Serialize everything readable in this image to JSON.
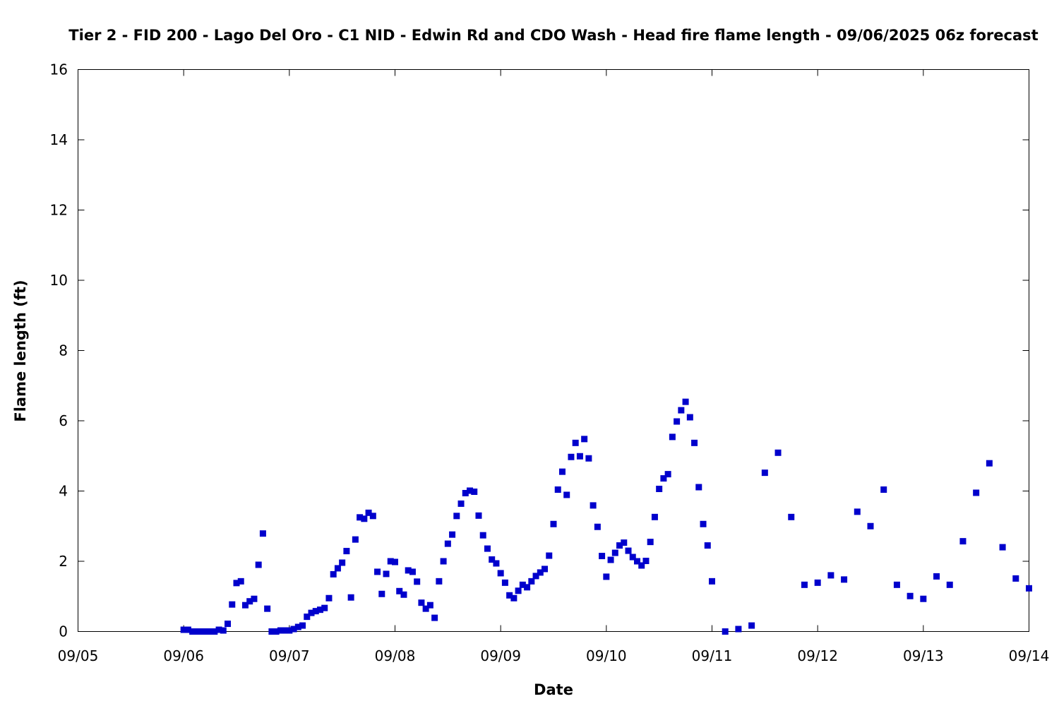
{
  "chart_data": {
    "type": "scatter",
    "title": "Tier 2 - FID 200 - Lago Del Oro - C1 NID - Edwin Rd and CDO Wash - Head fire flame length - 09/06/2025 06z forecast",
    "xlabel": "Date",
    "ylabel": "Flame length (ft)",
    "x_tick_labels": [
      "09/05",
      "09/06",
      "09/07",
      "09/08",
      "09/09",
      "09/10",
      "09/11",
      "09/12",
      "09/13",
      "09/14"
    ],
    "y_tick_labels": [
      "0",
      "2",
      "4",
      "6",
      "8",
      "10",
      "12",
      "14",
      "16"
    ],
    "xlim": [
      "2025-09-05 00:00",
      "2025-09-14 00:00"
    ],
    "ylim": [
      0,
      16
    ],
    "grid": false,
    "legend": "none",
    "marker_color": "#0000cc",
    "series": [
      {
        "points": [
          [
            "2025-09-06 00:00",
            0.05
          ],
          [
            "2025-09-06 01:00",
            0.05
          ],
          [
            "2025-09-06 02:00",
            0.0
          ],
          [
            "2025-09-06 03:00",
            0.0
          ],
          [
            "2025-09-06 04:00",
            0.0
          ],
          [
            "2025-09-06 05:00",
            0.0
          ],
          [
            "2025-09-06 06:00",
            0.0
          ],
          [
            "2025-09-06 07:00",
            0.0
          ],
          [
            "2025-09-06 08:00",
            0.05
          ],
          [
            "2025-09-06 09:00",
            0.03
          ],
          [
            "2025-09-06 10:00",
            0.22
          ],
          [
            "2025-09-06 11:00",
            0.77
          ],
          [
            "2025-09-06 12:00",
            1.38
          ],
          [
            "2025-09-06 13:00",
            1.43
          ],
          [
            "2025-09-06 14:00",
            0.75
          ],
          [
            "2025-09-06 15:00",
            0.86
          ],
          [
            "2025-09-06 16:00",
            0.93
          ],
          [
            "2025-09-06 17:00",
            1.9
          ],
          [
            "2025-09-06 18:00",
            2.79
          ],
          [
            "2025-09-06 19:00",
            0.65
          ],
          [
            "2025-09-06 20:00",
            0.0
          ],
          [
            "2025-09-06 21:00",
            0.0
          ],
          [
            "2025-09-06 22:00",
            0.03
          ],
          [
            "2025-09-06 23:00",
            0.03
          ],
          [
            "2025-09-07 00:00",
            0.03
          ],
          [
            "2025-09-07 01:00",
            0.07
          ],
          [
            "2025-09-07 02:00",
            0.13
          ],
          [
            "2025-09-07 03:00",
            0.17
          ],
          [
            "2025-09-07 04:00",
            0.42
          ],
          [
            "2025-09-07 05:00",
            0.53
          ],
          [
            "2025-09-07 06:00",
            0.58
          ],
          [
            "2025-09-07 07:00",
            0.62
          ],
          [
            "2025-09-07 08:00",
            0.67
          ],
          [
            "2025-09-07 09:00",
            0.95
          ],
          [
            "2025-09-07 10:00",
            1.63
          ],
          [
            "2025-09-07 11:00",
            1.8
          ],
          [
            "2025-09-07 12:00",
            1.96
          ],
          [
            "2025-09-07 13:00",
            2.29
          ],
          [
            "2025-09-07 14:00",
            0.97
          ],
          [
            "2025-09-07 15:00",
            2.62
          ],
          [
            "2025-09-07 16:00",
            3.25
          ],
          [
            "2025-09-07 17:00",
            3.21
          ],
          [
            "2025-09-07 18:00",
            3.38
          ],
          [
            "2025-09-07 19:00",
            3.29
          ],
          [
            "2025-09-07 20:00",
            1.7
          ],
          [
            "2025-09-07 21:00",
            1.07
          ],
          [
            "2025-09-07 22:00",
            1.64
          ],
          [
            "2025-09-07 23:00",
            2.0
          ],
          [
            "2025-09-08 00:00",
            1.98
          ],
          [
            "2025-09-08 01:00",
            1.15
          ],
          [
            "2025-09-08 02:00",
            1.05
          ],
          [
            "2025-09-08 03:00",
            1.74
          ],
          [
            "2025-09-08 04:00",
            1.7
          ],
          [
            "2025-09-08 05:00",
            1.42
          ],
          [
            "2025-09-08 06:00",
            0.82
          ],
          [
            "2025-09-08 07:00",
            0.65
          ],
          [
            "2025-09-08 08:00",
            0.75
          ],
          [
            "2025-09-08 09:00",
            0.39
          ],
          [
            "2025-09-08 10:00",
            1.43
          ],
          [
            "2025-09-08 11:00",
            2.0
          ],
          [
            "2025-09-08 12:00",
            2.5
          ],
          [
            "2025-09-08 13:00",
            2.76
          ],
          [
            "2025-09-08 14:00",
            3.29
          ],
          [
            "2025-09-08 15:00",
            3.64
          ],
          [
            "2025-09-08 16:00",
            3.94
          ],
          [
            "2025-09-08 17:00",
            4.01
          ],
          [
            "2025-09-08 18:00",
            3.98
          ],
          [
            "2025-09-08 19:00",
            3.3
          ],
          [
            "2025-09-08 20:00",
            2.74
          ],
          [
            "2025-09-08 21:00",
            2.36
          ],
          [
            "2025-09-08 22:00",
            2.05
          ],
          [
            "2025-09-08 23:00",
            1.94
          ],
          [
            "2025-09-09 00:00",
            1.66
          ],
          [
            "2025-09-09 01:00",
            1.39
          ],
          [
            "2025-09-09 02:00",
            1.03
          ],
          [
            "2025-09-09 03:00",
            0.95
          ],
          [
            "2025-09-09 04:00",
            1.16
          ],
          [
            "2025-09-09 05:00",
            1.33
          ],
          [
            "2025-09-09 06:00",
            1.26
          ],
          [
            "2025-09-09 07:00",
            1.43
          ],
          [
            "2025-09-09 08:00",
            1.58
          ],
          [
            "2025-09-09 09:00",
            1.68
          ],
          [
            "2025-09-09 10:00",
            1.78
          ],
          [
            "2025-09-09 11:00",
            2.16
          ],
          [
            "2025-09-09 12:00",
            3.06
          ],
          [
            "2025-09-09 13:00",
            4.04
          ],
          [
            "2025-09-09 14:00",
            4.55
          ],
          [
            "2025-09-09 15:00",
            3.89
          ],
          [
            "2025-09-09 16:00",
            4.97
          ],
          [
            "2025-09-09 17:00",
            5.37
          ],
          [
            "2025-09-09 18:00",
            4.99
          ],
          [
            "2025-09-09 19:00",
            5.48
          ],
          [
            "2025-09-09 20:00",
            4.93
          ],
          [
            "2025-09-09 21:00",
            3.59
          ],
          [
            "2025-09-09 22:00",
            2.98
          ],
          [
            "2025-09-09 23:00",
            2.15
          ],
          [
            "2025-09-10 00:00",
            1.56
          ],
          [
            "2025-09-10 01:00",
            2.04
          ],
          [
            "2025-09-10 02:00",
            2.24
          ],
          [
            "2025-09-10 03:00",
            2.45
          ],
          [
            "2025-09-10 04:00",
            2.53
          ],
          [
            "2025-09-10 05:00",
            2.3
          ],
          [
            "2025-09-10 06:00",
            2.12
          ],
          [
            "2025-09-10 07:00",
            2.0
          ],
          [
            "2025-09-10 08:00",
            1.88
          ],
          [
            "2025-09-10 09:00",
            2.01
          ],
          [
            "2025-09-10 10:00",
            2.55
          ],
          [
            "2025-09-10 11:00",
            3.26
          ],
          [
            "2025-09-10 12:00",
            4.06
          ],
          [
            "2025-09-10 13:00",
            4.36
          ],
          [
            "2025-09-10 14:00",
            4.48
          ],
          [
            "2025-09-10 15:00",
            5.54
          ],
          [
            "2025-09-10 16:00",
            5.98
          ],
          [
            "2025-09-10 17:00",
            6.3
          ],
          [
            "2025-09-10 18:00",
            6.54
          ],
          [
            "2025-09-10 19:00",
            6.1
          ],
          [
            "2025-09-10 20:00",
            5.37
          ],
          [
            "2025-09-10 21:00",
            4.11
          ],
          [
            "2025-09-10 22:00",
            3.06
          ],
          [
            "2025-09-10 23:00",
            2.45
          ],
          [
            "2025-09-11 00:00",
            1.43
          ],
          [
            "2025-09-11 03:00",
            0.0
          ],
          [
            "2025-09-11 06:00",
            0.07
          ],
          [
            "2025-09-11 09:00",
            0.17
          ],
          [
            "2025-09-11 12:00",
            4.52
          ],
          [
            "2025-09-11 15:00",
            5.09
          ],
          [
            "2025-09-11 18:00",
            3.26
          ],
          [
            "2025-09-11 21:00",
            1.33
          ],
          [
            "2025-09-12 00:00",
            1.39
          ],
          [
            "2025-09-12 03:00",
            1.6
          ],
          [
            "2025-09-12 06:00",
            1.48
          ],
          [
            "2025-09-12 09:00",
            3.41
          ],
          [
            "2025-09-12 12:00",
            3.0
          ],
          [
            "2025-09-12 15:00",
            4.04
          ],
          [
            "2025-09-12 18:00",
            1.33
          ],
          [
            "2025-09-12 21:00",
            1.01
          ],
          [
            "2025-09-13 00:00",
            0.93
          ],
          [
            "2025-09-13 03:00",
            1.57
          ],
          [
            "2025-09-13 06:00",
            1.33
          ],
          [
            "2025-09-13 09:00",
            2.57
          ],
          [
            "2025-09-13 12:00",
            3.95
          ],
          [
            "2025-09-13 15:00",
            4.79
          ],
          [
            "2025-09-13 18:00",
            2.4
          ],
          [
            "2025-09-13 21:00",
            1.51
          ],
          [
            "2025-09-14 00:00",
            1.23
          ]
        ]
      }
    ]
  }
}
